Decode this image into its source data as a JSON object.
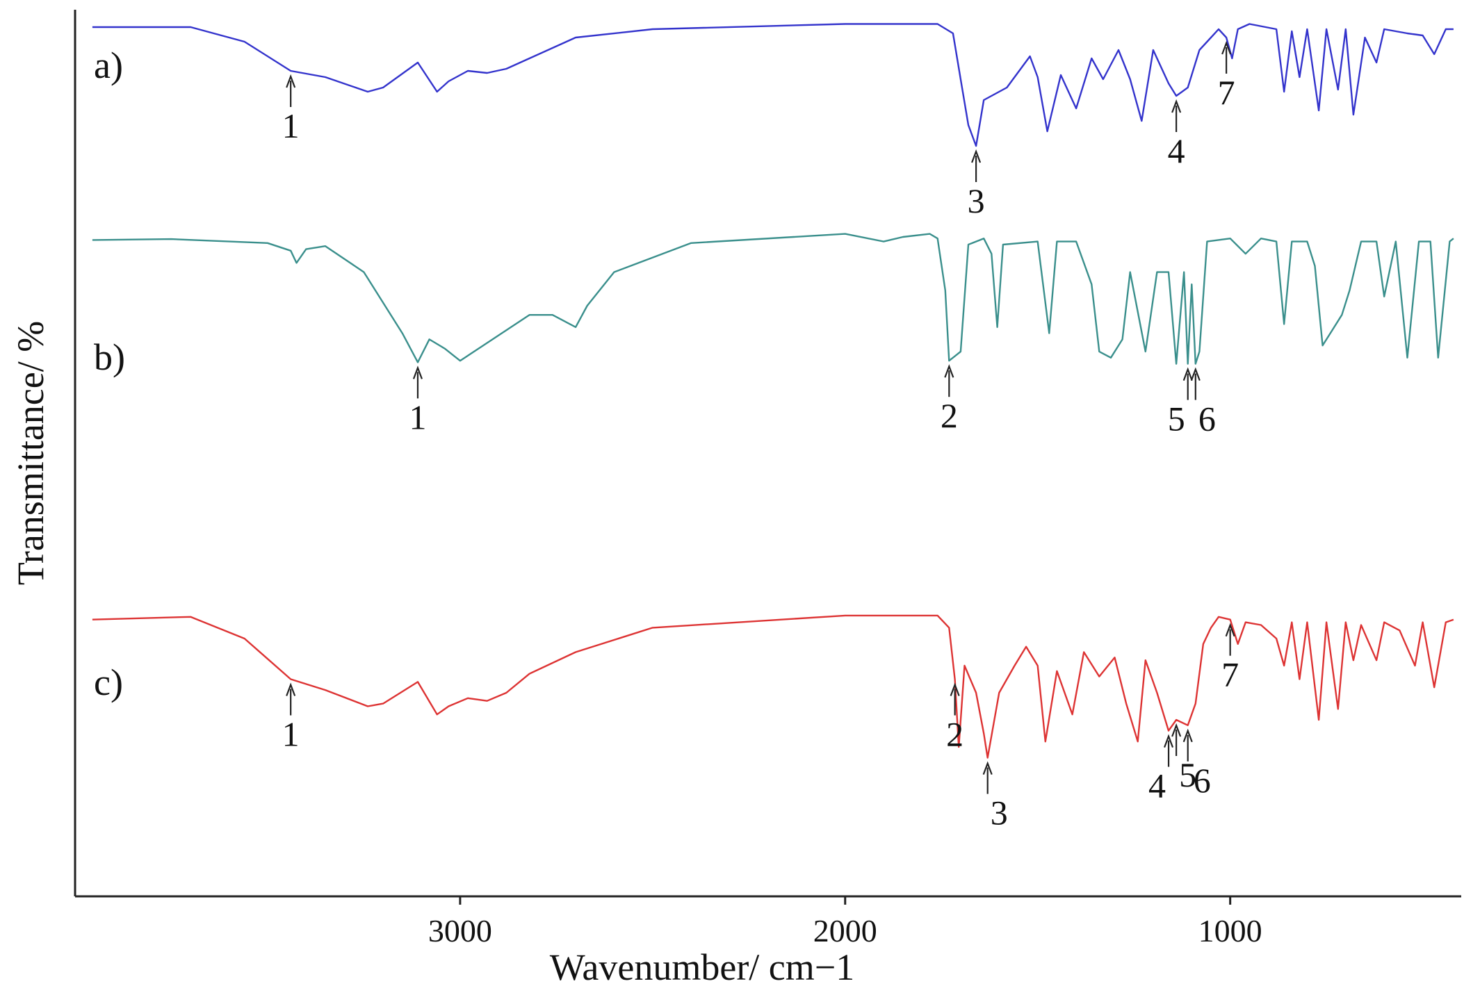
{
  "chart_data": {
    "type": "line",
    "title": "",
    "xlabel": "Wavenumber/ cm−1",
    "ylabel": "Transmittance/ %",
    "xlim": [
      4000,
      400
    ],
    "x_ticks": [
      3000,
      2000,
      1000
    ],
    "x_tick_labels": [
      "3000",
      "2000",
      "1000"
    ],
    "grid": false,
    "legend": "none",
    "series": [
      {
        "name": "a",
        "label": "a)",
        "color": "#3333cc",
        "baseline": 0.975,
        "points": [
          [
            3955,
            0.97
          ],
          [
            3700,
            0.97
          ],
          [
            3560,
            0.9
          ],
          [
            3440,
            0.76
          ],
          [
            3350,
            0.73
          ],
          [
            3240,
            0.66
          ],
          [
            3200,
            0.68
          ],
          [
            3110,
            0.8
          ],
          [
            3060,
            0.66
          ],
          [
            3030,
            0.71
          ],
          [
            2980,
            0.76
          ],
          [
            2930,
            0.75
          ],
          [
            2880,
            0.77
          ],
          [
            2820,
            0.82
          ],
          [
            2700,
            0.92
          ],
          [
            2500,
            0.96
          ],
          [
            2000,
            0.985
          ],
          [
            1760,
            0.985
          ],
          [
            1720,
            0.94
          ],
          [
            1700,
            0.72
          ],
          [
            1680,
            0.5
          ],
          [
            1660,
            0.4
          ],
          [
            1640,
            0.62
          ],
          [
            1580,
            0.68
          ],
          [
            1520,
            0.83
          ],
          [
            1500,
            0.73
          ],
          [
            1475,
            0.47
          ],
          [
            1440,
            0.74
          ],
          [
            1400,
            0.58
          ],
          [
            1360,
            0.82
          ],
          [
            1330,
            0.72
          ],
          [
            1290,
            0.86
          ],
          [
            1260,
            0.72
          ],
          [
            1230,
            0.52
          ],
          [
            1200,
            0.86
          ],
          [
            1160,
            0.7
          ],
          [
            1140,
            0.64
          ],
          [
            1110,
            0.68
          ],
          [
            1080,
            0.86
          ],
          [
            1050,
            0.92
          ],
          [
            1030,
            0.96
          ],
          [
            1010,
            0.92
          ],
          [
            995,
            0.82
          ],
          [
            980,
            0.96
          ],
          [
            950,
            0.985
          ],
          [
            880,
            0.96
          ],
          [
            860,
            0.66
          ],
          [
            840,
            0.95
          ],
          [
            820,
            0.73
          ],
          [
            800,
            0.96
          ],
          [
            770,
            0.57
          ],
          [
            750,
            0.96
          ],
          [
            720,
            0.67
          ],
          [
            700,
            0.96
          ],
          [
            680,
            0.55
          ],
          [
            650,
            0.92
          ],
          [
            620,
            0.8
          ],
          [
            600,
            0.96
          ],
          [
            540,
            0.94
          ],
          [
            500,
            0.93
          ],
          [
            470,
            0.84
          ],
          [
            440,
            0.96
          ],
          [
            420,
            0.96
          ]
        ]
      },
      {
        "name": "b",
        "label": "b)",
        "color": "#3a8f8c",
        "baseline": 0.96,
        "points": [
          [
            3955,
            0.965
          ],
          [
            3750,
            0.968
          ],
          [
            3500,
            0.955
          ],
          [
            3440,
            0.93
          ],
          [
            3425,
            0.89
          ],
          [
            3400,
            0.935
          ],
          [
            3350,
            0.945
          ],
          [
            3250,
            0.86
          ],
          [
            3150,
            0.66
          ],
          [
            3110,
            0.565
          ],
          [
            3080,
            0.64
          ],
          [
            3040,
            0.61
          ],
          [
            3000,
            0.57
          ],
          [
            2940,
            0.62
          ],
          [
            2820,
            0.72
          ],
          [
            2760,
            0.72
          ],
          [
            2700,
            0.68
          ],
          [
            2670,
            0.75
          ],
          [
            2600,
            0.86
          ],
          [
            2400,
            0.955
          ],
          [
            2000,
            0.985
          ],
          [
            1900,
            0.96
          ],
          [
            1850,
            0.975
          ],
          [
            1780,
            0.985
          ],
          [
            1760,
            0.97
          ],
          [
            1740,
            0.8
          ],
          [
            1730,
            0.57
          ],
          [
            1700,
            0.6
          ],
          [
            1680,
            0.95
          ],
          [
            1640,
            0.97
          ],
          [
            1620,
            0.92
          ],
          [
            1605,
            0.68
          ],
          [
            1590,
            0.95
          ],
          [
            1500,
            0.96
          ],
          [
            1470,
            0.66
          ],
          [
            1450,
            0.96
          ],
          [
            1400,
            0.96
          ],
          [
            1360,
            0.82
          ],
          [
            1340,
            0.6
          ],
          [
            1310,
            0.58
          ],
          [
            1280,
            0.64
          ],
          [
            1260,
            0.86
          ],
          [
            1220,
            0.6
          ],
          [
            1190,
            0.86
          ],
          [
            1160,
            0.86
          ],
          [
            1140,
            0.56
          ],
          [
            1120,
            0.86
          ],
          [
            1110,
            0.56
          ],
          [
            1100,
            0.82
          ],
          [
            1090,
            0.56
          ],
          [
            1080,
            0.6
          ],
          [
            1060,
            0.96
          ],
          [
            1000,
            0.97
          ],
          [
            960,
            0.92
          ],
          [
            920,
            0.97
          ],
          [
            880,
            0.96
          ],
          [
            860,
            0.69
          ],
          [
            840,
            0.96
          ],
          [
            800,
            0.96
          ],
          [
            780,
            0.88
          ],
          [
            760,
            0.62
          ],
          [
            740,
            0.66
          ],
          [
            710,
            0.72
          ],
          [
            690,
            0.8
          ],
          [
            660,
            0.96
          ],
          [
            620,
            0.96
          ],
          [
            600,
            0.78
          ],
          [
            570,
            0.96
          ],
          [
            540,
            0.58
          ],
          [
            510,
            0.96
          ],
          [
            480,
            0.96
          ],
          [
            460,
            0.58
          ],
          [
            430,
            0.96
          ],
          [
            420,
            0.97
          ]
        ]
      },
      {
        "name": "c",
        "label": "c)",
        "color": "#dd3333",
        "baseline": 0.975,
        "points": [
          [
            3955,
            0.97
          ],
          [
            3700,
            0.98
          ],
          [
            3560,
            0.9
          ],
          [
            3440,
            0.75
          ],
          [
            3350,
            0.71
          ],
          [
            3240,
            0.65
          ],
          [
            3200,
            0.66
          ],
          [
            3110,
            0.74
          ],
          [
            3060,
            0.62
          ],
          [
            3030,
            0.65
          ],
          [
            2980,
            0.68
          ],
          [
            2930,
            0.67
          ],
          [
            2880,
            0.7
          ],
          [
            2820,
            0.77
          ],
          [
            2700,
            0.85
          ],
          [
            2500,
            0.94
          ],
          [
            2000,
            0.985
          ],
          [
            1760,
            0.985
          ],
          [
            1730,
            0.94
          ],
          [
            1715,
            0.75
          ],
          [
            1705,
            0.5
          ],
          [
            1690,
            0.8
          ],
          [
            1660,
            0.7
          ],
          [
            1640,
            0.55
          ],
          [
            1630,
            0.46
          ],
          [
            1600,
            0.7
          ],
          [
            1560,
            0.8
          ],
          [
            1530,
            0.87
          ],
          [
            1500,
            0.8
          ],
          [
            1480,
            0.52
          ],
          [
            1450,
            0.78
          ],
          [
            1410,
            0.62
          ],
          [
            1380,
            0.85
          ],
          [
            1340,
            0.76
          ],
          [
            1300,
            0.83
          ],
          [
            1270,
            0.66
          ],
          [
            1240,
            0.52
          ],
          [
            1220,
            0.82
          ],
          [
            1190,
            0.7
          ],
          [
            1160,
            0.56
          ],
          [
            1140,
            0.6
          ],
          [
            1110,
            0.58
          ],
          [
            1090,
            0.66
          ],
          [
            1070,
            0.88
          ],
          [
            1050,
            0.94
          ],
          [
            1030,
            0.98
          ],
          [
            1000,
            0.97
          ],
          [
            980,
            0.88
          ],
          [
            960,
            0.96
          ],
          [
            920,
            0.95
          ],
          [
            880,
            0.9
          ],
          [
            860,
            0.8
          ],
          [
            840,
            0.96
          ],
          [
            820,
            0.75
          ],
          [
            800,
            0.96
          ],
          [
            770,
            0.6
          ],
          [
            750,
            0.96
          ],
          [
            720,
            0.64
          ],
          [
            700,
            0.96
          ],
          [
            680,
            0.82
          ],
          [
            660,
            0.95
          ],
          [
            620,
            0.82
          ],
          [
            600,
            0.96
          ],
          [
            560,
            0.93
          ],
          [
            520,
            0.8
          ],
          [
            500,
            0.96
          ],
          [
            470,
            0.72
          ],
          [
            440,
            0.96
          ],
          [
            420,
            0.97
          ]
        ]
      }
    ],
    "annotations": [
      {
        "series": "a",
        "label": "1",
        "x": 3440,
        "side": "below"
      },
      {
        "series": "a",
        "label": "3",
        "x": 1660,
        "side": "below"
      },
      {
        "series": "a",
        "label": "4",
        "x": 1140,
        "side": "below"
      },
      {
        "series": "a",
        "label": "7",
        "x": 1010,
        "side": "below"
      },
      {
        "series": "b",
        "label": "1",
        "x": 3110,
        "side": "below"
      },
      {
        "series": "b",
        "label": "2",
        "x": 1730,
        "side": "below"
      },
      {
        "series": "b",
        "label": "5",
        "x": 1110,
        "side": "below-left"
      },
      {
        "series": "b",
        "label": "6",
        "x": 1090,
        "side": "below-right"
      },
      {
        "series": "c",
        "label": "1",
        "x": 3440,
        "side": "below"
      },
      {
        "series": "c",
        "label": "2",
        "x": 1715,
        "side": "below"
      },
      {
        "series": "c",
        "label": "3",
        "x": 1630,
        "side": "below-right"
      },
      {
        "series": "c",
        "label": "4",
        "x": 1160,
        "side": "below-left"
      },
      {
        "series": "c",
        "label": "5",
        "x": 1140,
        "side": "below-right"
      },
      {
        "series": "c",
        "label": "6",
        "x": 1110,
        "side": "above-right"
      },
      {
        "series": "c",
        "label": "7",
        "x": 1000,
        "side": "below"
      }
    ]
  }
}
